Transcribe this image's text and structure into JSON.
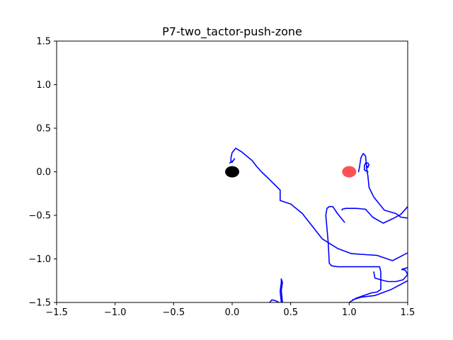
{
  "chart_data": {
    "type": "line",
    "title": "P7-two_tactor-push-zone",
    "xlabel": "",
    "ylabel": "",
    "xlim": [
      -1.5,
      1.5
    ],
    "ylim": [
      -1.5,
      1.5
    ],
    "grid": false,
    "xticks": [
      -1.5,
      -1.0,
      -0.5,
      0.0,
      0.5,
      1.0,
      1.5
    ],
    "yticks": [
      -1.5,
      -1.0,
      -0.5,
      0.0,
      0.5,
      1.0,
      1.5
    ],
    "xtick_labels": [
      "−1.5",
      "−1.0",
      "−0.5",
      "0.0",
      "0.5",
      "1.0",
      "1.5"
    ],
    "ytick_labels": [
      "−1.5",
      "−1.0",
      "−0.5",
      "0.0",
      "0.5",
      "1.0",
      "1.5"
    ],
    "colors": {
      "trajectory": "#0000ff",
      "start_marker": "#000000",
      "target_marker": "#ff3333"
    },
    "markers": [
      {
        "x": 0.0,
        "y": 0.0,
        "color": "#000000",
        "opacity": 1.0
      },
      {
        "x": 1.0,
        "y": 0.0,
        "color": "#ff3333",
        "opacity": 0.85
      }
    ],
    "series": [
      {
        "points": [
          [
            -0.02,
            0.1
          ],
          [
            0.01,
            0.13
          ],
          [
            0.02,
            0.15
          ],
          [
            0.01,
            0.13
          ],
          [
            0.0,
            0.11
          ],
          [
            -0.01,
            0.11
          ],
          [
            -0.01,
            0.16
          ],
          [
            0.0,
            0.22
          ],
          [
            0.03,
            0.27
          ],
          [
            0.08,
            0.23
          ],
          [
            0.17,
            0.13
          ],
          [
            0.21,
            0.06
          ],
          [
            0.25,
            0.0
          ],
          [
            0.32,
            -0.09
          ],
          [
            0.41,
            -0.21
          ],
          [
            0.41,
            -0.33
          ],
          [
            0.5,
            -0.37
          ],
          [
            0.6,
            -0.48
          ],
          [
            0.77,
            -0.77
          ],
          [
            0.9,
            -0.88
          ],
          [
            1.02,
            -0.94
          ],
          [
            1.24,
            -0.96
          ],
          [
            1.37,
            -1.02
          ],
          [
            1.5,
            -0.93
          ]
        ]
      },
      {
        "points": [
          [
            0.96,
            -0.58
          ],
          [
            0.9,
            -0.48
          ],
          [
            0.86,
            -0.4
          ],
          [
            0.83,
            -0.4
          ],
          [
            0.81,
            -0.42
          ],
          [
            0.8,
            -0.5
          ],
          [
            0.82,
            -0.8
          ],
          [
            0.83,
            -1.05
          ],
          [
            0.85,
            -1.08
          ],
          [
            0.9,
            -1.09
          ],
          [
            1.1,
            -1.09
          ],
          [
            1.26,
            -1.09
          ],
          [
            1.27,
            -1.15
          ],
          [
            1.27,
            -1.35
          ],
          [
            1.24,
            -1.38
          ],
          [
            1.19,
            -1.39
          ],
          [
            1.06,
            -1.45
          ],
          [
            1.0,
            -1.5
          ]
        ]
      },
      {
        "points": [
          [
            0.94,
            -0.44
          ],
          [
            0.94,
            -0.43
          ],
          [
            0.97,
            -0.42
          ],
          [
            1.06,
            -0.42
          ],
          [
            1.14,
            -0.43
          ],
          [
            1.2,
            -0.52
          ],
          [
            1.29,
            -0.59
          ],
          [
            1.37,
            -0.54
          ],
          [
            1.44,
            -0.49
          ],
          [
            1.5,
            -0.4
          ]
        ]
      },
      {
        "points": [
          [
            1.5,
            -0.53
          ],
          [
            1.49,
            -0.53
          ],
          [
            1.44,
            -0.52
          ],
          [
            1.4,
            -0.48
          ],
          [
            1.35,
            -0.46
          ],
          [
            1.3,
            -0.44
          ],
          [
            1.27,
            -0.39
          ],
          [
            1.21,
            -0.29
          ],
          [
            1.17,
            -0.18
          ],
          [
            1.16,
            -0.05
          ],
          [
            1.15,
            0.04
          ],
          [
            1.14,
            0.18
          ],
          [
            1.12,
            0.21
          ],
          [
            1.1,
            0.16
          ],
          [
            1.09,
            0.07
          ],
          [
            1.08,
            0.0
          ]
        ]
      },
      {
        "points": [
          [
            1.15,
            0.04
          ],
          [
            1.15,
            0.07
          ],
          [
            1.16,
            0.05
          ],
          [
            1.17,
            0.08
          ],
          [
            1.16,
            0.1
          ],
          [
            1.14,
            0.1
          ],
          [
            1.13,
            0.07
          ],
          [
            1.13,
            0.02
          ],
          [
            1.16,
            0.0
          ]
        ]
      },
      {
        "points": [
          [
            1.21,
            -1.15
          ],
          [
            1.22,
            -1.22
          ],
          [
            1.27,
            -1.24
          ],
          [
            1.33,
            -1.26
          ],
          [
            1.4,
            -1.26
          ],
          [
            1.46,
            -1.24
          ],
          [
            1.5,
            -1.18
          ],
          [
            1.48,
            -1.13
          ],
          [
            1.45,
            -1.12
          ],
          [
            1.5,
            -1.1
          ]
        ]
      },
      {
        "points": [
          [
            1.03,
            -1.47
          ],
          [
            1.1,
            -1.44
          ],
          [
            1.22,
            -1.42
          ],
          [
            1.36,
            -1.35
          ],
          [
            1.5,
            -1.25
          ]
        ]
      },
      {
        "points": [
          [
            0.43,
            -1.5
          ],
          [
            0.42,
            -1.36
          ],
          [
            0.43,
            -1.27
          ],
          [
            0.42,
            -1.23
          ],
          [
            0.42,
            -1.27
          ],
          [
            0.41,
            -1.37
          ],
          [
            0.42,
            -1.5
          ]
        ]
      },
      {
        "points": [
          [
            0.32,
            -1.5
          ],
          [
            0.34,
            -1.47
          ],
          [
            0.37,
            -1.48
          ],
          [
            0.4,
            -1.5
          ]
        ]
      }
    ]
  }
}
